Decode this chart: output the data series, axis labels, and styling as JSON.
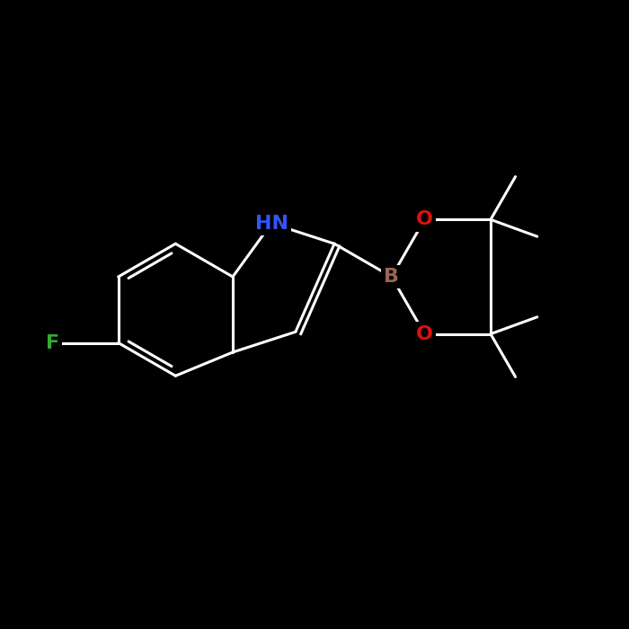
{
  "background_color": "#000000",
  "bond_color": "#ffffff",
  "bond_width": 2.2,
  "atom_labels": {
    "NH": {
      "text": "HN",
      "color": "#3355ff",
      "fontsize": 16,
      "fontweight": "bold"
    },
    "B": {
      "text": "B",
      "color": "#996655",
      "fontsize": 16,
      "fontweight": "bold"
    },
    "O1": {
      "text": "O",
      "color": "#dd1111",
      "fontsize": 16,
      "fontweight": "bold"
    },
    "O2": {
      "text": "O",
      "color": "#dd1111",
      "fontsize": 16,
      "fontweight": "bold"
    },
    "F": {
      "text": "F",
      "color": "#33aa33",
      "fontsize": 16,
      "fontweight": "bold"
    }
  },
  "figsize": [
    7.0,
    7.0
  ],
  "dpi": 100,
  "xlim": [
    0,
    10
  ],
  "ylim": [
    0,
    10
  ]
}
